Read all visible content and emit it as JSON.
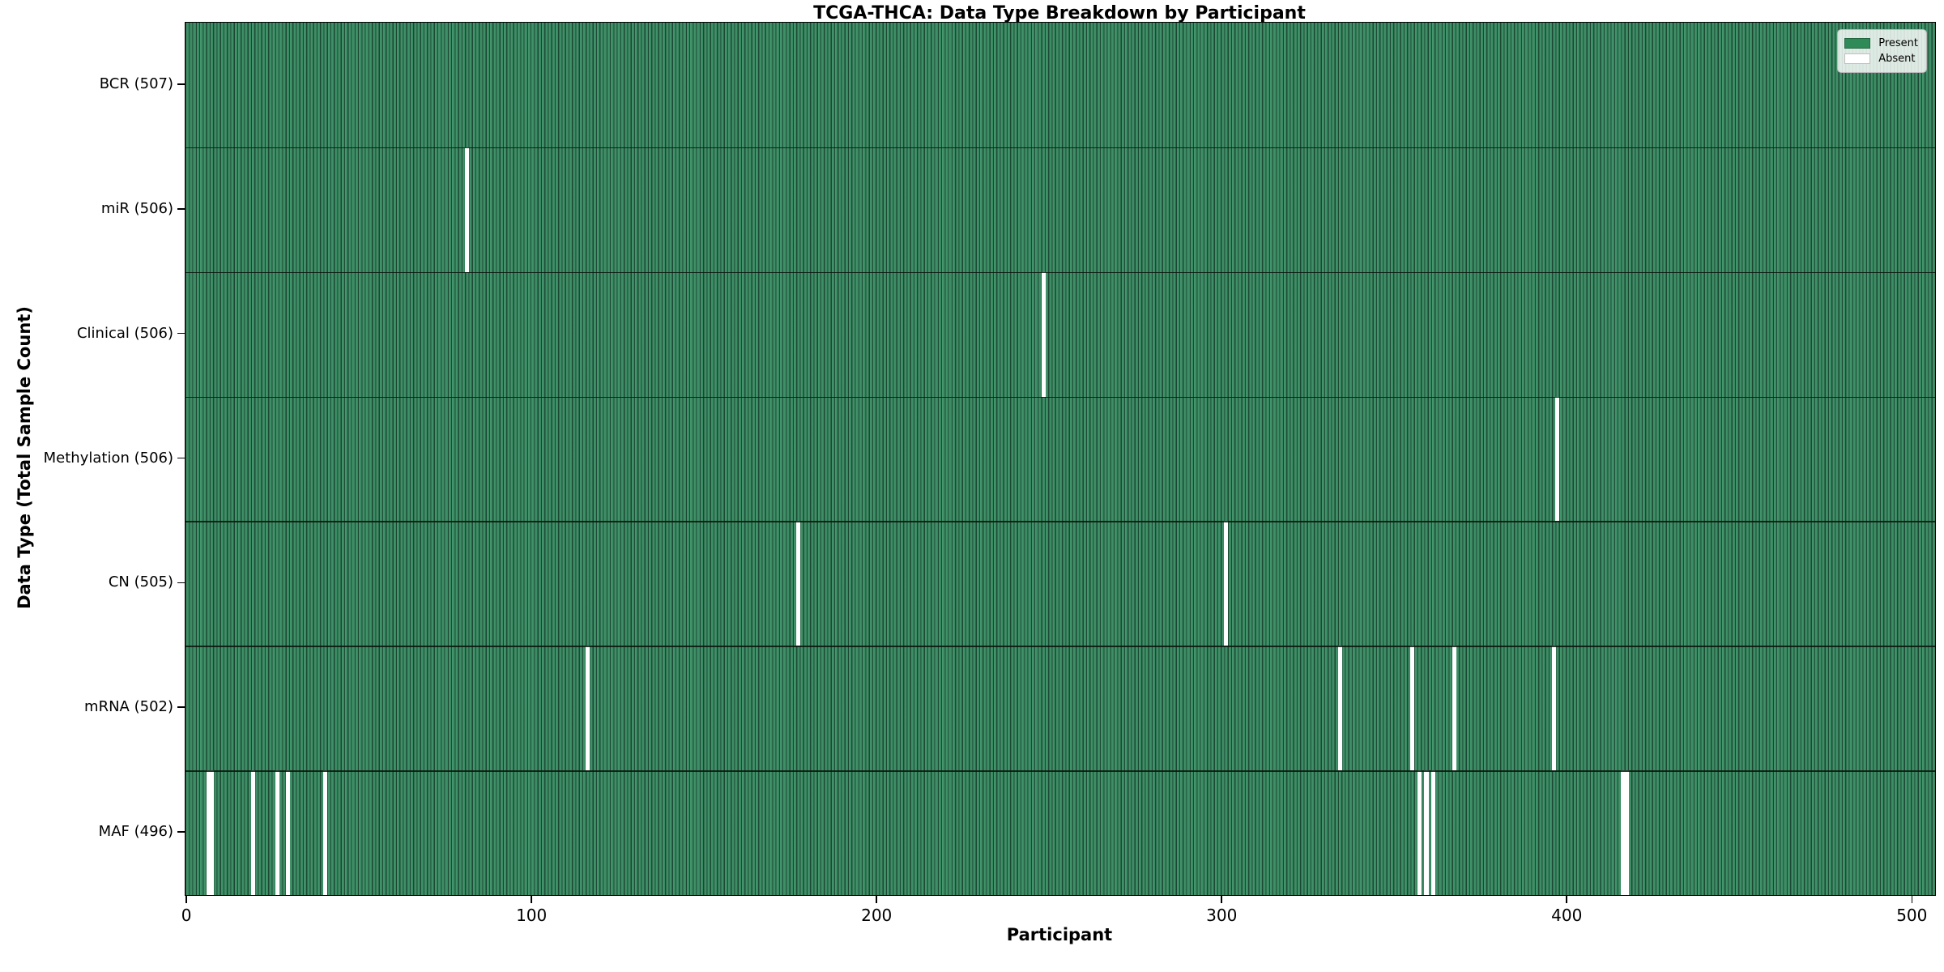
{
  "chart_data": {
    "type": "heatmap",
    "title": "TCGA-THCA: Data Type Breakdown by Participant",
    "xlabel": "Participant",
    "ylabel": "Data Type (Total Sample Count)",
    "n_participants": 507,
    "x_range": [
      0,
      507
    ],
    "x_ticks": [
      0,
      100,
      200,
      300,
      400,
      500
    ],
    "grid": false,
    "legend_position": "upper right",
    "legend": [
      {
        "label": "Present",
        "color": "#2e8b57"
      },
      {
        "label": "Absent",
        "color": "#ffffff"
      }
    ],
    "rows": [
      {
        "label": "BCR (507)",
        "name": "BCR",
        "total": 507,
        "absent": []
      },
      {
        "label": "miR (506)",
        "name": "miR",
        "total": 506,
        "absent": [
          81
        ]
      },
      {
        "label": "Clinical (506)",
        "name": "Clinical",
        "total": 506,
        "absent": [
          248
        ]
      },
      {
        "label": "Methylation (506)",
        "name": "Methylation",
        "total": 506,
        "absent": [
          397
        ]
      },
      {
        "label": "CN (505)",
        "name": "CN",
        "total": 505,
        "absent": [
          177,
          301
        ]
      },
      {
        "label": "mRNA (502)",
        "name": "mRNA",
        "total": 502,
        "absent": [
          116,
          334,
          355,
          367,
          396
        ]
      },
      {
        "label": "MAF (496)",
        "name": "MAF",
        "total": 496,
        "absent": [
          6,
          7,
          19,
          26,
          29,
          40,
          357,
          359,
          361,
          416,
          417
        ]
      }
    ],
    "colors": {
      "present": "#2e8b57",
      "present_fill": "#3a9166",
      "bar_edge": "rgba(0,0,0,0.50)",
      "absent": "#ffffff",
      "row_divider": "#141f16",
      "plot_border": "#000000",
      "legend_bg": "rgba(255,255,255,0.82)",
      "legend_border": "#b9b9b9",
      "text": "#000000"
    }
  }
}
